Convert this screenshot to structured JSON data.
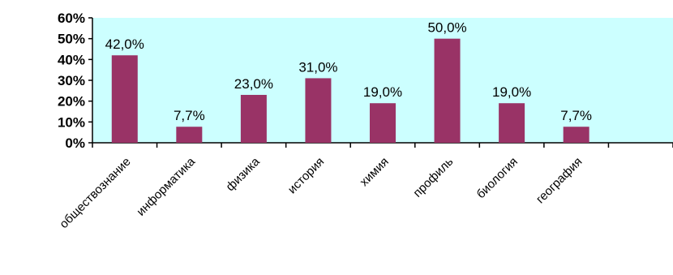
{
  "chart_data": {
    "type": "bar",
    "categories": [
      "обществознание",
      "информатика",
      "физика",
      "история",
      "химия",
      "профиль",
      "биология",
      "география",
      ""
    ],
    "values": [
      42.0,
      7.7,
      23.0,
      31.0,
      19.0,
      50.0,
      19.0,
      7.7,
      null
    ],
    "data_labels": [
      "42,0%",
      "7,7%",
      "23,0%",
      "31,0%",
      "19,0%",
      "50,0%",
      "19,0%",
      "7,7%",
      ""
    ],
    "y_ticks": [
      0,
      10,
      20,
      30,
      40,
      50,
      60
    ],
    "y_tick_labels": [
      "0%",
      "10%",
      "20%",
      "30%",
      "40%",
      "50%",
      "60%"
    ],
    "ylim": [
      0,
      60
    ],
    "title": "",
    "xlabel": "",
    "ylabel": "",
    "grid": false,
    "legend": "none",
    "colors": {
      "plot_background": "#ccffff",
      "bar": "#993366",
      "axis": "#000000"
    }
  }
}
